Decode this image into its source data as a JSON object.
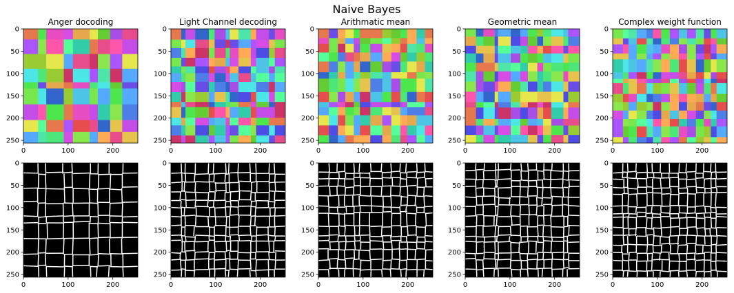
{
  "chart_data": {
    "type": "heatmap",
    "suptitle": "Naive Bayes",
    "image_size": [
      256,
      256
    ],
    "xlim": [
      0,
      256
    ],
    "ylim": [
      256,
      0
    ],
    "xticks": [
      0,
      100,
      200
    ],
    "yticks": [
      0,
      50,
      100,
      150,
      200,
      250
    ],
    "grid": false,
    "rows": [
      {
        "content": "segmentation-colored"
      },
      {
        "content": "segmentation-boundaries"
      }
    ],
    "panels": [
      {
        "title": "Anger docoding",
        "cells": 9
      },
      {
        "title": "Light Channel decoding",
        "cells": 13
      },
      {
        "title": "Arithmatic mean",
        "cells": 13
      },
      {
        "title": "Geometric mean",
        "cells": 13
      },
      {
        "title": "Complex weight function",
        "cells": 14
      }
    ],
    "palette": [
      "#e6c34d",
      "#4d7fe6",
      "#e64d8a",
      "#4de6a8",
      "#a84de6",
      "#e6a84d",
      "#4de64d",
      "#c34de6",
      "#e64d4d",
      "#4dc3e6",
      "#8ae64d",
      "#e64dc3",
      "#4de6e6",
      "#6a4de6",
      "#e6e64d",
      "#4d4de6",
      "#e6784d",
      "#78e64d",
      "#d64de6",
      "#4de678",
      "#ff55aa",
      "#55ff99",
      "#aa55ff",
      "#55aaff",
      "#ffaa55",
      "#99cc33",
      "#33ccaa",
      "#cc3366",
      "#3366cc",
      "#66cc33"
    ]
  }
}
